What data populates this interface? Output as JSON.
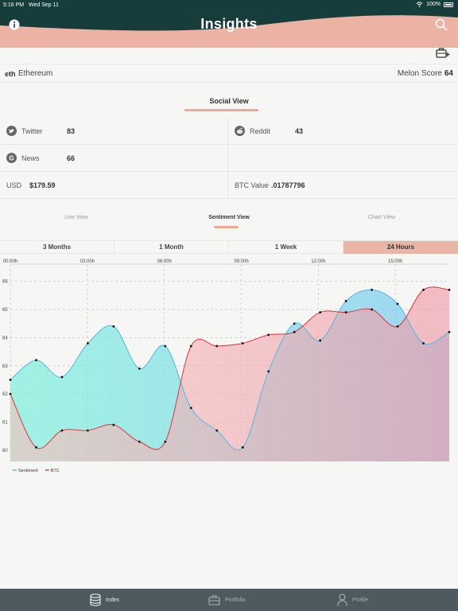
{
  "status_bar": {
    "time": "5:16 PM",
    "date": "Wed Sep 11",
    "battery": "100%"
  },
  "header": {
    "title": "Insights",
    "info_icon": "info-icon",
    "search_icon": "search-icon"
  },
  "toolbar": {
    "add_portfolio_icon": "briefcase-plus-icon"
  },
  "coin": {
    "symbol": "eth",
    "name": "Ethereum",
    "score_label": "Melon Score",
    "score_value": "64"
  },
  "social": {
    "title": "Social View",
    "twitter": {
      "label": "Twitter",
      "value": "83"
    },
    "reddit": {
      "label": "Reddit",
      "value": "43"
    },
    "news": {
      "label": "News",
      "value": "66"
    },
    "usd": {
      "label": "USD",
      "value": "$179.59"
    },
    "btc": {
      "label": "BTC Value",
      "value": ".01787796"
    }
  },
  "view_tabs": [
    {
      "label": "Live View"
    },
    {
      "label": "Sentiment View"
    },
    {
      "label": "Chart View"
    }
  ],
  "range_tabs": [
    {
      "label": "3 Months"
    },
    {
      "label": "1 Month"
    },
    {
      "label": "1 Week"
    },
    {
      "label": "24 Hours"
    }
  ],
  "chart_data": {
    "type": "area",
    "x_ticks": [
      "00:00h",
      "03:00h",
      "06:00h",
      "09:00h",
      "12:00h",
      "15:00h"
    ],
    "y_ticks": [
      "60",
      "61",
      "62",
      "63",
      "64",
      "65",
      "66"
    ],
    "ylim": [
      59.6,
      66.5
    ],
    "x": [
      0,
      1,
      2,
      3,
      4,
      5,
      6,
      7,
      8,
      9,
      10,
      11,
      12,
      13,
      14,
      15,
      16,
      17
    ],
    "series": [
      {
        "name": "Sentiment",
        "color": "#5ab4e0",
        "values": [
          62.5,
          63.2,
          62.6,
          63.8,
          64.4,
          62.9,
          63.7,
          61.5,
          60.7,
          60.1,
          62.8,
          64.5,
          63.9,
          65.3,
          65.7,
          65.2,
          63.8,
          64.2
        ]
      },
      {
        "name": "BTC",
        "color": "#d9363e",
        "values": [
          62.0,
          60.1,
          60.7,
          60.7,
          60.9,
          60.3,
          60.3,
          63.7,
          63.7,
          63.8,
          64.1,
          64.2,
          64.9,
          64.9,
          65.0,
          64.4,
          65.7,
          65.7
        ]
      }
    ],
    "legend": [
      "Sentiment",
      "BTC"
    ]
  },
  "bottom_nav": [
    {
      "label": "Index"
    },
    {
      "label": "Portfolio"
    },
    {
      "label": "Profile"
    }
  ]
}
